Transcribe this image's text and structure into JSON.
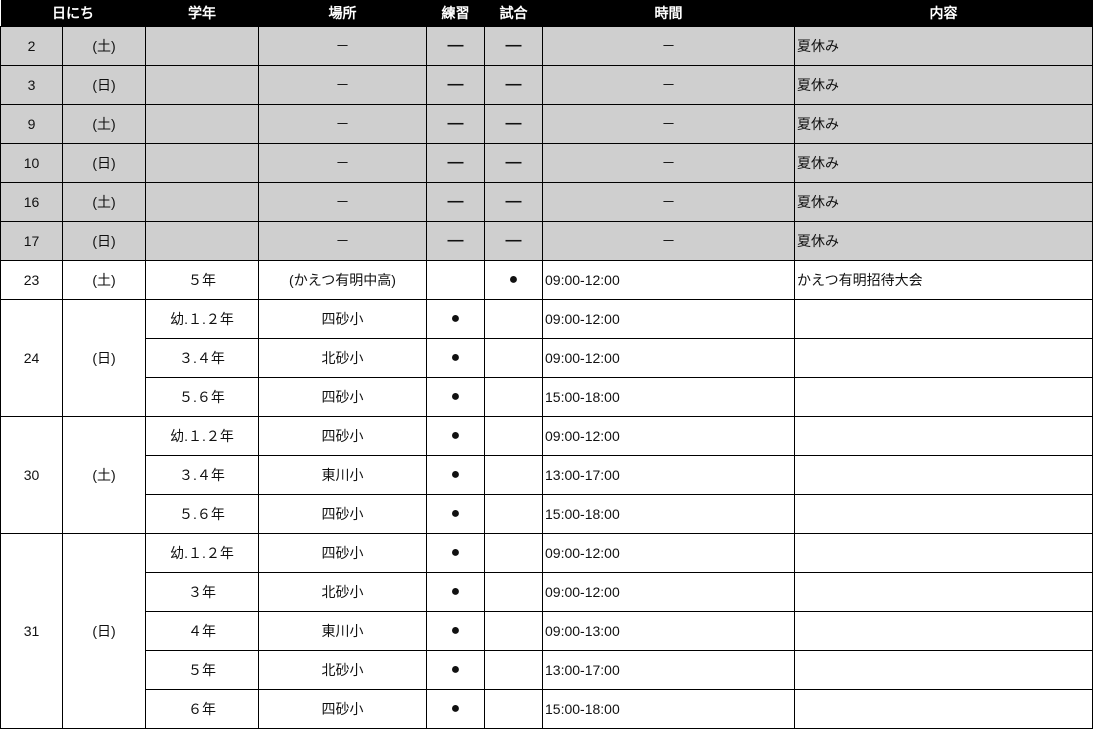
{
  "header": [
    "日にち",
    "",
    "学年",
    "場所",
    "練習",
    "試合",
    "時間",
    "内容"
  ],
  "days": [
    {
      "date": "2",
      "dow": "(土)",
      "off": true,
      "sessions": [
        {
          "grade": "",
          "place": "－",
          "practice": "—",
          "match": "—",
          "time": "－",
          "content": "夏休み"
        }
      ]
    },
    {
      "date": "3",
      "dow": "(日)",
      "off": true,
      "sessions": [
        {
          "grade": "",
          "place": "－",
          "practice": "—",
          "match": "—",
          "time": "－",
          "content": "夏休み"
        }
      ]
    },
    {
      "date": "9",
      "dow": "(土)",
      "off": true,
      "sessions": [
        {
          "grade": "",
          "place": "－",
          "practice": "—",
          "match": "—",
          "time": "－",
          "content": "夏休み"
        }
      ]
    },
    {
      "date": "10",
      "dow": "(日)",
      "off": true,
      "sessions": [
        {
          "grade": "",
          "place": "－",
          "practice": "—",
          "match": "—",
          "time": "－",
          "content": "夏休み"
        }
      ]
    },
    {
      "date": "16",
      "dow": "(土)",
      "off": true,
      "sessions": [
        {
          "grade": "",
          "place": "－",
          "practice": "—",
          "match": "—",
          "time": "－",
          "content": "夏休み"
        }
      ]
    },
    {
      "date": "17",
      "dow": "(日)",
      "off": true,
      "sessions": [
        {
          "grade": "",
          "place": "－",
          "practice": "—",
          "match": "—",
          "time": "－",
          "content": "夏休み"
        }
      ]
    },
    {
      "date": "23",
      "dow": "(土)",
      "off": false,
      "sessions": [
        {
          "grade": "５年",
          "place": "(かえつ有明中高)",
          "practice": "",
          "match": "●",
          "time": "09:00-12:00",
          "content": "かえつ有明招待大会"
        }
      ]
    },
    {
      "date": "24",
      "dow": "(日)",
      "off": false,
      "sessions": [
        {
          "grade": "幼.１.２年",
          "place": "四砂小",
          "practice": "●",
          "match": "",
          "time": "09:00-12:00",
          "content": ""
        },
        {
          "grade": "３.４年",
          "place": "北砂小",
          "practice": "●",
          "match": "",
          "time": "09:00-12:00",
          "content": ""
        },
        {
          "grade": "５.６年",
          "place": "四砂小",
          "practice": "●",
          "match": "",
          "time": "15:00-18:00",
          "content": ""
        }
      ]
    },
    {
      "date": "30",
      "dow": "(土)",
      "off": false,
      "sessions": [
        {
          "grade": "幼.１.２年",
          "place": "四砂小",
          "practice": "●",
          "match": "",
          "time": "09:00-12:00",
          "content": ""
        },
        {
          "grade": "３.４年",
          "place": "東川小",
          "practice": "●",
          "match": "",
          "time": "13:00-17:00",
          "content": ""
        },
        {
          "grade": "５.６年",
          "place": "四砂小",
          "practice": "●",
          "match": "",
          "time": "15:00-18:00",
          "content": ""
        }
      ]
    },
    {
      "date": "31",
      "dow": "(日)",
      "off": false,
      "sessions": [
        {
          "grade": "幼.１.２年",
          "place": "四砂小",
          "practice": "●",
          "match": "",
          "time": "09:00-12:00",
          "content": ""
        },
        {
          "grade": "３年",
          "place": "北砂小",
          "practice": "●",
          "match": "",
          "time": "09:00-12:00",
          "content": ""
        },
        {
          "grade": "４年",
          "place": "東川小",
          "practice": "●",
          "match": "",
          "time": "09:00-13:00",
          "content": ""
        },
        {
          "grade": "５年",
          "place": "北砂小",
          "practice": "●",
          "match": "",
          "time": "13:00-17:00",
          "content": ""
        },
        {
          "grade": "６年",
          "place": "四砂小",
          "practice": "●",
          "match": "",
          "time": "15:00-18:00",
          "content": ""
        }
      ]
    }
  ]
}
